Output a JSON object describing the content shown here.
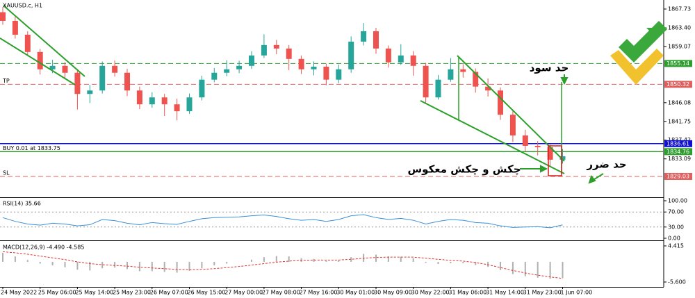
{
  "chart_data": [
    {
      "type": "candlestick",
      "title": "XAUUSD.c, H1",
      "open": [
        1867.0,
        1865.0,
        1861.8,
        1857.8,
        1853.8,
        1854.6,
        1853.0,
        1848.1,
        1848.9,
        1854.6,
        1853.0,
        1848.9,
        1845.7,
        1847.3,
        1845.7,
        1844.1,
        1847.3,
        1851.4,
        1853.0,
        1853.8,
        1854.6,
        1857.0,
        1859.4,
        1858.6,
        1856.2,
        1853.8,
        1854.4,
        1851.4,
        1853.8,
        1860.2,
        1862.6,
        1858.6,
        1855.4,
        1857.0,
        1854.6,
        1847.3,
        1851.4,
        1853.8,
        1853.2,
        1849.8,
        1848.9,
        1843.3,
        1838.5,
        1836.1,
        1835.8,
        1832.9
      ],
      "high": [
        1868.2,
        1865.9,
        1862.6,
        1858.5,
        1856.0,
        1855.5,
        1853.8,
        1850.2,
        1855.6,
        1855.8,
        1853.9,
        1849.8,
        1848.5,
        1848.1,
        1847.0,
        1848.2,
        1852.3,
        1854.1,
        1855.9,
        1855.8,
        1858.0,
        1861.9,
        1860.6,
        1859.4,
        1857.0,
        1855.6,
        1855.1,
        1854.9,
        1861.4,
        1864.5,
        1863.4,
        1859.3,
        1859.6,
        1858.0,
        1855.3,
        1852.5,
        1856.4,
        1855.0,
        1854.0,
        1851.7,
        1849.6,
        1844.2,
        1839.8,
        1837.2,
        1836.4,
        1835.4
      ],
      "low": [
        1864.1,
        1860.9,
        1856.9,
        1852.6,
        1852.9,
        1851.8,
        1844.5,
        1846.0,
        1848.2,
        1852.1,
        1847.6,
        1844.6,
        1844.9,
        1843.0,
        1842.0,
        1843.5,
        1846.6,
        1850.8,
        1852.2,
        1852.9,
        1853.9,
        1856.4,
        1857.3,
        1853.6,
        1852.7,
        1852.4,
        1850.1,
        1850.6,
        1853.0,
        1859.3,
        1857.4,
        1854.2,
        1854.8,
        1852.3,
        1846.1,
        1846.8,
        1850.9,
        1851.9,
        1848.4,
        1847.5,
        1842.1,
        1837.0,
        1834.9,
        1833.9,
        1831.2,
        1832.0
      ],
      "close": [
        1865.0,
        1861.8,
        1857.8,
        1853.8,
        1854.6,
        1853.0,
        1848.1,
        1848.9,
        1854.6,
        1853.0,
        1848.9,
        1845.7,
        1847.3,
        1845.7,
        1844.1,
        1847.3,
        1851.4,
        1853.0,
        1853.8,
        1854.6,
        1857.0,
        1859.4,
        1858.6,
        1856.2,
        1853.8,
        1854.4,
        1851.4,
        1853.8,
        1860.2,
        1862.6,
        1858.6,
        1855.4,
        1857.0,
        1854.6,
        1847.3,
        1851.4,
        1853.8,
        1853.2,
        1849.8,
        1848.9,
        1843.3,
        1838.5,
        1836.1,
        1835.8,
        1832.9,
        1833.7
      ],
      "up_color": "#26a69a",
      "down_color": "#ef5350",
      "ylim": [
        1824.37,
        1869.82
      ],
      "yticks": [
        1867.73,
        {
          "value": 1863.4,
          "label": "1863.40"
        },
        1859.07,
        1846.08,
        1841.75,
        1837.42,
        1833.09
      ],
      "hlines": [
        {
          "value": 1855.14,
          "color": "#2e9e2e",
          "style": "dashed"
        },
        {
          "value": 1850.32,
          "color": "#e06060",
          "style": "dashed",
          "label": "TP"
        },
        {
          "value": 1836.61,
          "color": "#1010cc",
          "style": "solid"
        },
        {
          "value": 1834.76,
          "color": "#2e9e2e",
          "style": "solid",
          "label": "BUY 0.01 at 1833.75"
        },
        {
          "value": 1829.03,
          "color": "#e06060",
          "style": "dashed",
          "label": "SL"
        }
      ],
      "annotations": [
        "حد سود",
        "حد ضرر",
        "چکش و چکش معکوس"
      ]
    },
    {
      "type": "line",
      "title": "RSI(14) 35.66",
      "color": "#3a8fd8",
      "values": [
        55,
        45,
        38,
        35,
        40,
        38,
        33,
        36,
        50,
        47,
        40,
        36,
        42,
        39,
        37,
        45,
        52,
        55,
        56,
        57,
        60,
        62,
        58,
        52,
        48,
        50,
        45,
        50,
        60,
        63,
        55,
        50,
        53,
        48,
        38,
        45,
        50,
        48,
        42,
        40,
        33,
        29,
        30,
        31,
        28,
        35.66
      ],
      "ylim": [
        0,
        100
      ],
      "yticks": [
        {
          "value": 100,
          "label": "100.00"
        },
        {
          "value": 70,
          "label": "70.00"
        },
        {
          "value": 30,
          "label": "30.00"
        },
        {
          "value": 0,
          "label": "0.00"
        }
      ]
    },
    {
      "type": "macd",
      "title": "MACD(12,26,9) -4.490 -4.585",
      "categories": [
        "24 May 2022",
        null,
        null,
        "25 May 06:00",
        null,
        null,
        "25 May 14:00",
        null,
        null,
        "25 May 23:00",
        null,
        null,
        "26 May 07:00",
        null,
        null,
        "26 May 15:00",
        null,
        null,
        "27 May 00:00",
        null,
        null,
        "27 May 08:00",
        null,
        null,
        "27 May 16:00",
        null,
        null,
        "30 May 01:00",
        null,
        null,
        "30 May 09:00",
        null,
        null,
        "30 May 22:00",
        null,
        null,
        "31 May 06:00",
        null,
        null,
        "31 May 14:00",
        null,
        null,
        "31 May 23:00",
        null,
        null,
        "1 Jun 07:00"
      ],
      "histogram": {
        "color": "#b0b0b0",
        "values": [
          2.5,
          1.5,
          0.5,
          -0.5,
          -1.0,
          -1.5,
          -2.2,
          -2.4,
          -1.8,
          -1.6,
          -2.0,
          -2.6,
          -2.6,
          -2.8,
          -3.0,
          -2.5,
          -1.8,
          -1.0,
          -0.5,
          0.0,
          0.6,
          1.3,
          1.6,
          1.5,
          1.0,
          0.8,
          0.3,
          0.4,
          1.3,
          2.2,
          2.0,
          1.5,
          1.4,
          1.0,
          -0.3,
          -0.6,
          -0.4,
          -0.4,
          -0.9,
          -1.4,
          -2.3,
          -3.4,
          -4.0,
          -4.4,
          -4.7,
          -4.49
        ]
      },
      "signal": {
        "color": "#e03030",
        "values": [
          2.8,
          2.5,
          2.1,
          1.6,
          1.1,
          0.6,
          0.0,
          -0.5,
          -0.8,
          -1.0,
          -1.2,
          -1.5,
          -1.7,
          -1.9,
          -2.1,
          -2.2,
          -2.1,
          -1.9,
          -1.6,
          -1.3,
          -0.9,
          -0.5,
          -0.1,
          0.2,
          0.4,
          0.5,
          0.5,
          0.5,
          0.7,
          1.0,
          1.2,
          1.3,
          1.3,
          1.3,
          1.0,
          0.7,
          0.4,
          0.2,
          -0.2,
          -0.8,
          -1.6,
          -2.4,
          -3.1,
          -3.7,
          -4.2,
          -4.585
        ]
      },
      "ylim": [
        -6.76,
        5.57
      ],
      "yticks": [
        4.415,
        {
          "value": -5.6,
          "label": "-5.600"
        }
      ]
    }
  ]
}
